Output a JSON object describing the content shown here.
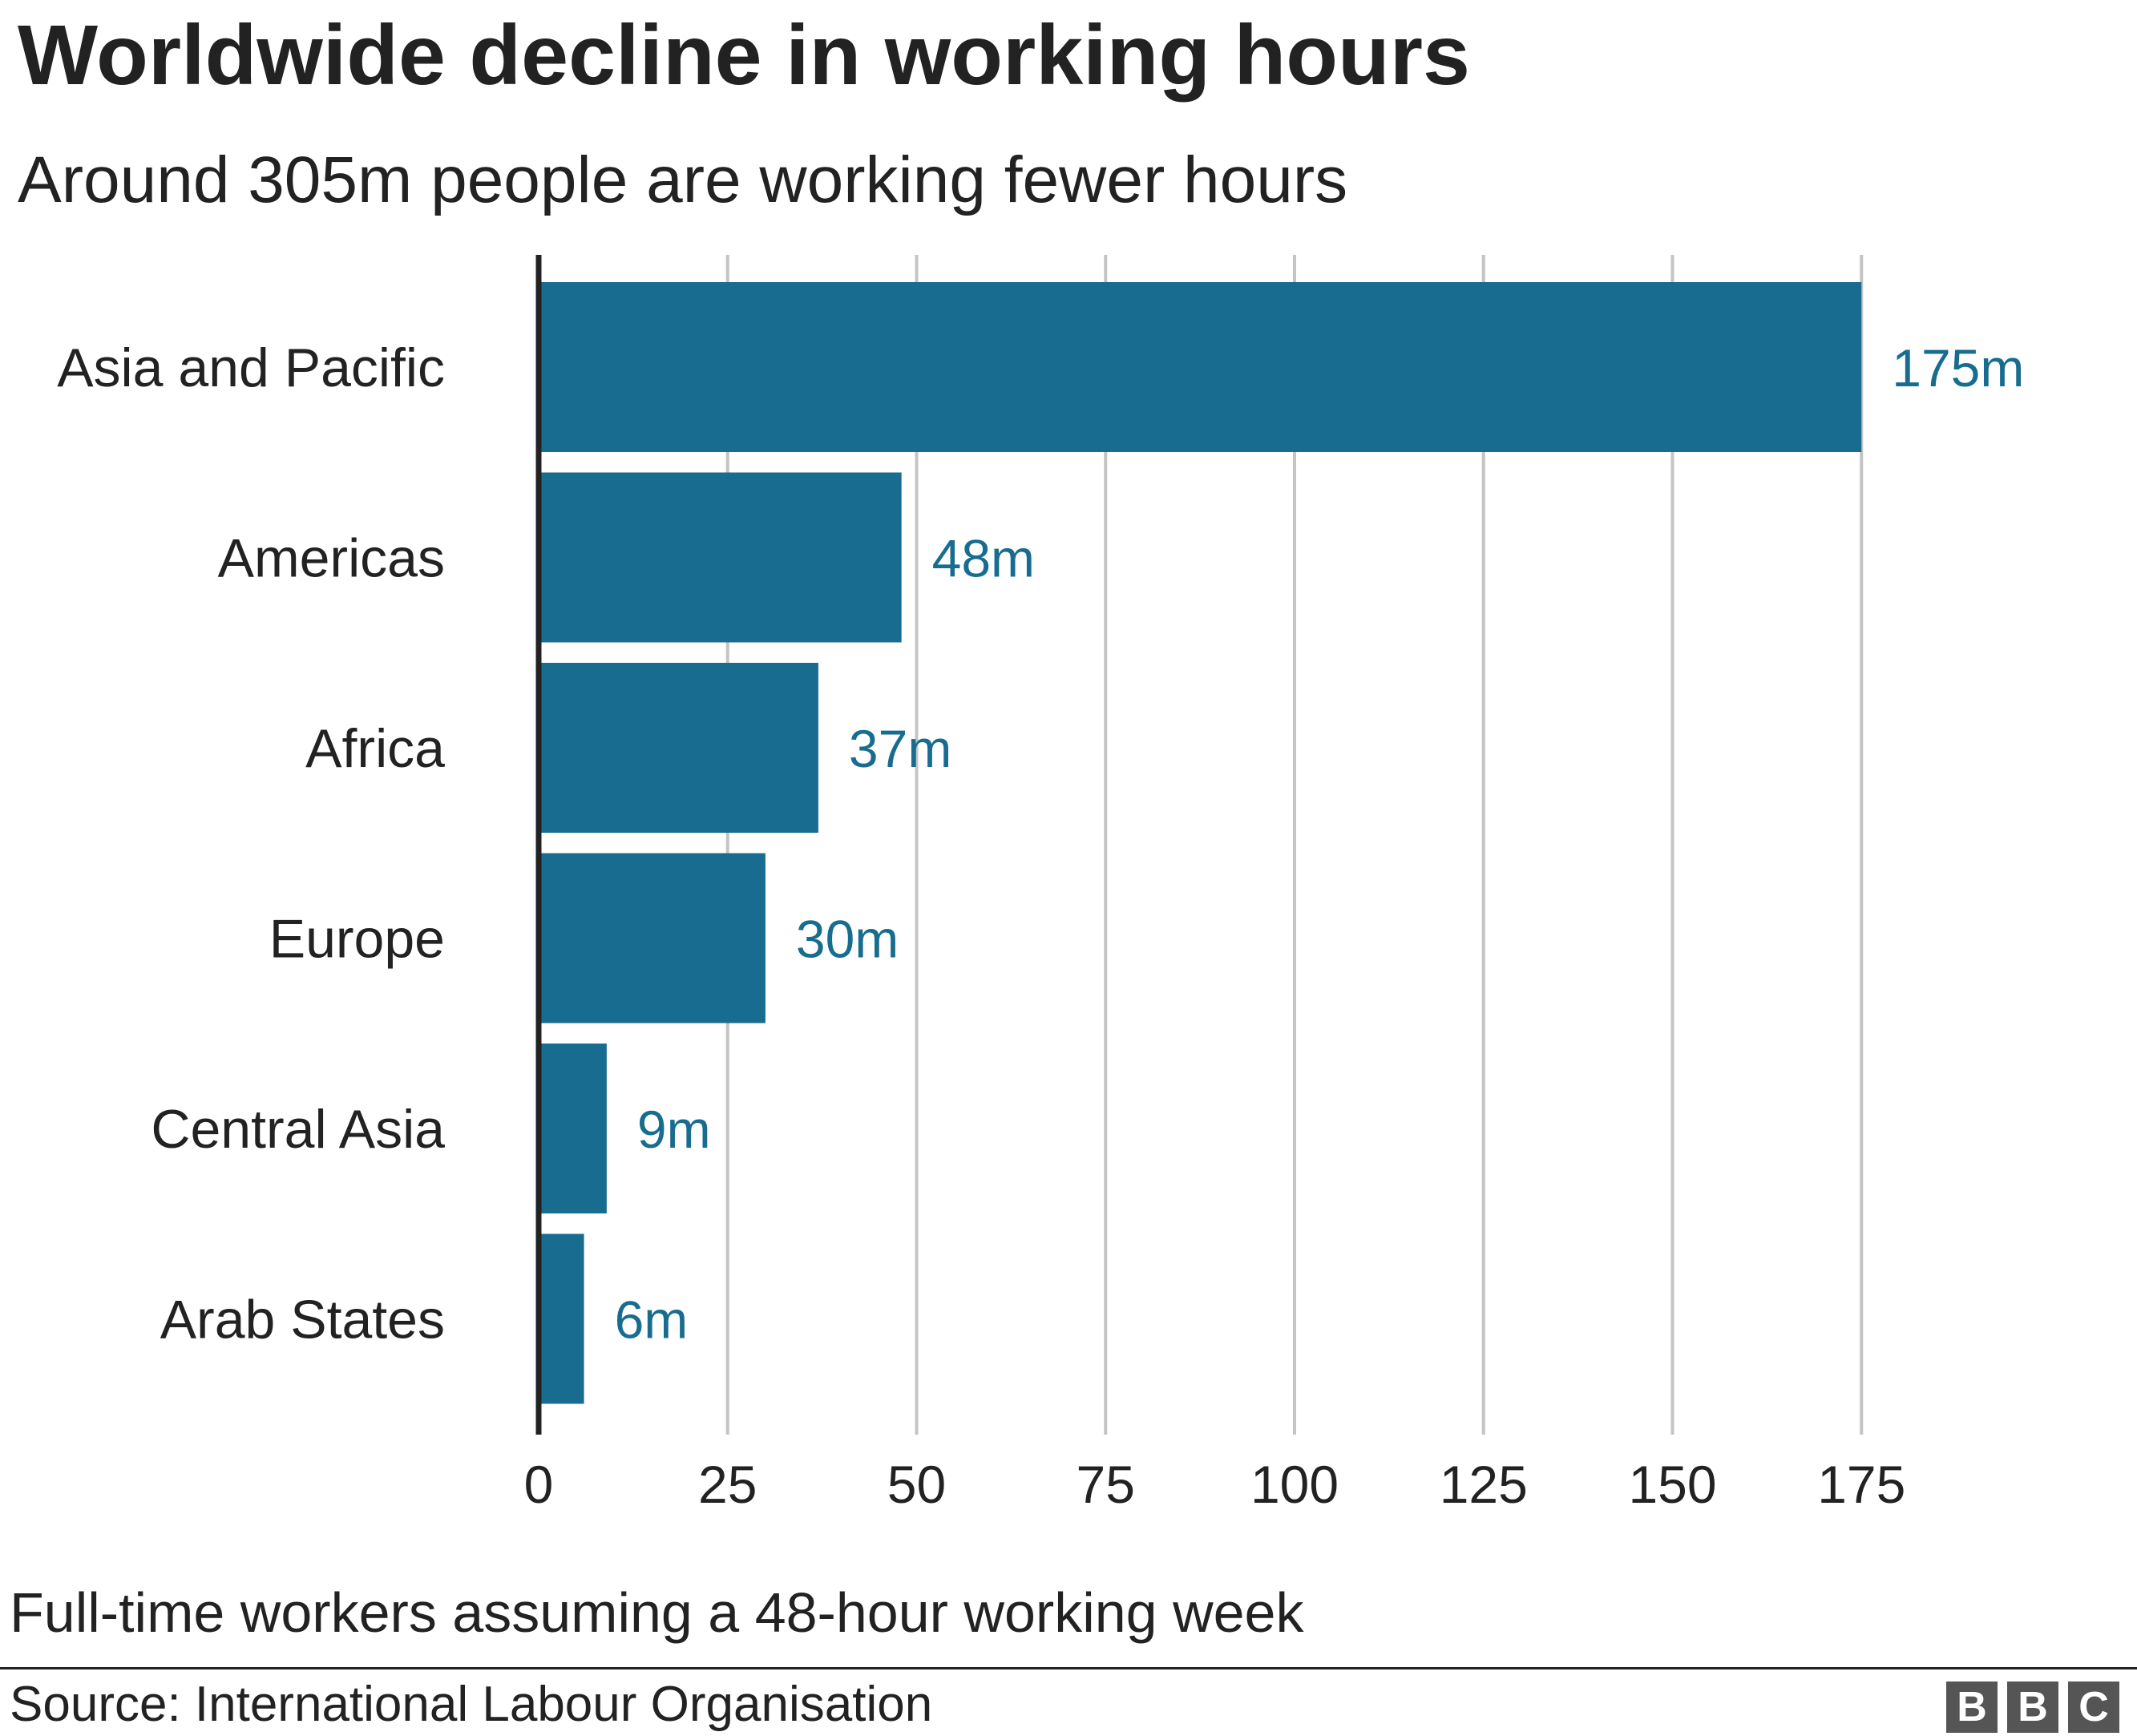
{
  "chart_data": {
    "type": "bar",
    "orientation": "horizontal",
    "title": "Worldwide decline in working hours",
    "subtitle": "Around 305m people are working fewer hours",
    "categories": [
      "Asia and Pacific",
      "Americas",
      "Africa",
      "Europe",
      "Central Asia",
      "Arab States"
    ],
    "values": [
      175,
      48,
      37,
      30,
      9,
      6
    ],
    "value_labels": [
      "175m",
      "48m",
      "37m",
      "30m",
      "9m",
      "6m"
    ],
    "xlim": [
      0,
      175
    ],
    "xticks": [
      "0",
      "25",
      "50",
      "75",
      "100",
      "125",
      "150",
      "175"
    ],
    "xtick_values": [
      0,
      25,
      50,
      75,
      100,
      125,
      150,
      175
    ],
    "grid": "vertical",
    "bar_color": "#176c8f",
    "label_color": "#176c8f",
    "note": "Full-time workers assuming a 48-hour working week",
    "source": "Source: International Labour Organisation"
  },
  "branding": {
    "logo_letters": [
      "B",
      "B",
      "C"
    ],
    "logo_color": "#555555"
  }
}
